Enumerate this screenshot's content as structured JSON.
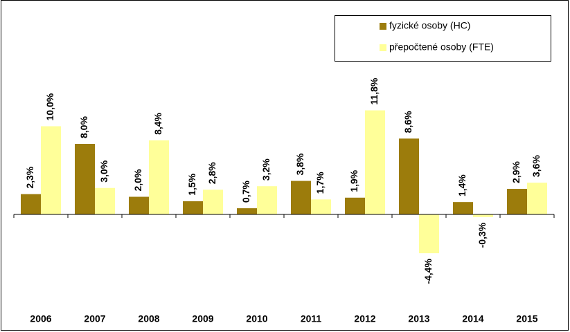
{
  "chart_data": {
    "type": "bar",
    "categories": [
      "2006",
      "2007",
      "2008",
      "2009",
      "2010",
      "2011",
      "2012",
      "2013",
      "2014",
      "2015"
    ],
    "series": [
      {
        "name": "fyzické osoby (HC)",
        "color": "#9c7c0c",
        "values": [
          2.3,
          8.0,
          2.0,
          1.5,
          0.7,
          3.8,
          1.9,
          8.6,
          1.4,
          2.9
        ],
        "value_labels": [
          "2,3%",
          "8,0%",
          "2,0%",
          "1,5%",
          "0,7%",
          "3,8%",
          "1,9%",
          "8,6%",
          "1,4%",
          "2,9%"
        ]
      },
      {
        "name": "přepočtené osoby (FTE)",
        "color": "#ffff99",
        "values": [
          10.0,
          3.0,
          8.4,
          2.8,
          3.2,
          1.7,
          11.8,
          -4.4,
          -0.3,
          3.6
        ],
        "value_labels": [
          "10,0%",
          "3,0%",
          "8,4%",
          "2,8%",
          "3,2%",
          "1,7%",
          "11,8%",
          "-4,4%",
          "-0,3%",
          "3,6%"
        ]
      }
    ],
    "legend": "top-right"
  }
}
